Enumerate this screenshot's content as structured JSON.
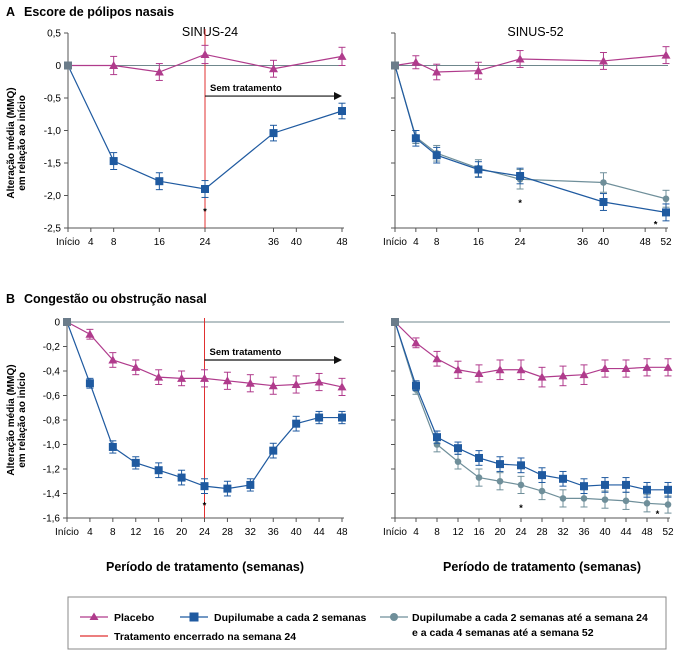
{
  "colors": {
    "placebo": "#b03b8c",
    "q2w": "#1f5aa0",
    "q2wq4w": "#6f8f9a",
    "stop": "#e03030",
    "axis": "#555555",
    "ref": "#3f5f66"
  },
  "figure": {
    "x_axis_title": "Período de tratamento (semanas)",
    "y_axis_title_line1": "Alteração média (MMQ)",
    "y_axis_title_line2": "em relação ao início",
    "annotation_no_treatment": "Sem tratamento",
    "significance_marker": "*"
  },
  "legend": {
    "placebo": "Placebo",
    "q2w": "Dupilumabe a cada 2 semanas",
    "q2wq4w_line1": "Dupilumabe a cada 2 semanas até a semana 24",
    "q2wq4w_line2": "e a cada 4 semanas até a semana 52",
    "stop": "Tratamento encerrado na semana 24"
  },
  "panels": {
    "A": {
      "letter": "A",
      "title": "Escore de pólipos nasais"
    },
    "B": {
      "letter": "B",
      "title": "Congestão ou obstrução nasal"
    }
  },
  "chart_data": [
    {
      "id": "A1",
      "type": "line",
      "panel": "A",
      "subtitle": "SINUS-24",
      "x": [
        0,
        8,
        16,
        24,
        36,
        48
      ],
      "xticks": [
        0,
        4,
        8,
        16,
        24,
        36,
        40,
        48
      ],
      "xtick_labels": [
        "Início",
        "4",
        "8",
        "16",
        "24",
        "36",
        "40",
        "48"
      ],
      "ylim": [
        -2.5,
        0.5
      ],
      "yticks": [
        0.5,
        0,
        -0.5,
        -1,
        -1.5,
        -2,
        -2.5
      ],
      "ytick_labels": [
        "0,5",
        "0",
        "-0,5",
        "-1,0",
        "-1,5",
        "-2,0",
        "-2,5"
      ],
      "series": [
        {
          "key": "placebo",
          "values": [
            0,
            0,
            -0.1,
            0.17,
            -0.05,
            0.14
          ],
          "err": [
            0,
            0.14,
            0.13,
            0.14,
            0.13,
            0.14
          ]
        },
        {
          "key": "q2w",
          "values": [
            0,
            -1.47,
            -1.78,
            -1.9,
            -1.04,
            -0.7
          ],
          "err": [
            0,
            0.13,
            0.13,
            0.13,
            0.12,
            0.12
          ]
        }
      ],
      "stop_week": 24,
      "stars": [
        {
          "x": 24,
          "y": -2.23
        }
      ],
      "arrow": {
        "x0": 24,
        "x1": 48,
        "y": -0.47
      }
    },
    {
      "id": "A2",
      "type": "line",
      "panel": "A",
      "subtitle": "SINUS-52",
      "x": [
        0,
        4,
        8,
        16,
        24,
        40,
        52
      ],
      "xticks": [
        0,
        4,
        8,
        16,
        24,
        36,
        40,
        48,
        52
      ],
      "xtick_labels": [
        "Início",
        "4",
        "8",
        "16",
        "24",
        "36",
        "40",
        "48",
        "52"
      ],
      "ylim": [
        -2.5,
        0.5
      ],
      "yticks": [
        0.5,
        0,
        -0.5,
        -1,
        -1.5,
        -2,
        -2.5
      ],
      "series": [
        {
          "key": "placebo",
          "values": [
            0,
            0.05,
            -0.1,
            -0.08,
            0.1,
            0.07,
            0.16
          ],
          "err": [
            0,
            0.1,
            0.12,
            0.13,
            0.13,
            0.13,
            0.13
          ]
        },
        {
          "key": "q2wq4w",
          "values": [
            0,
            -1.1,
            -1.35,
            -1.58,
            -1.75,
            -1.8,
            -2.05
          ],
          "err": [
            0,
            0.1,
            0.12,
            0.13,
            0.15,
            0.15,
            0.13
          ]
        },
        {
          "key": "q2w",
          "values": [
            0,
            -1.12,
            -1.38,
            -1.6,
            -1.7,
            -2.1,
            -2.26
          ],
          "err": [
            0,
            0.12,
            0.12,
            0.12,
            0.12,
            0.13,
            0.13
          ]
        }
      ],
      "stars": [
        {
          "x": 24,
          "y": -2.1
        },
        {
          "x": 50,
          "y": -2.43
        }
      ]
    },
    {
      "id": "B1",
      "type": "line",
      "panel": "B",
      "x": [
        0,
        4,
        8,
        12,
        16,
        20,
        24,
        28,
        32,
        36,
        40,
        44,
        48
      ],
      "xticks": [
        0,
        4,
        8,
        12,
        16,
        20,
        24,
        28,
        32,
        36,
        40,
        44,
        48
      ],
      "xtick_labels": [
        "Início",
        "4",
        "8",
        "12",
        "16",
        "20",
        "24",
        "28",
        "32",
        "36",
        "40",
        "44",
        "48"
      ],
      "ylim": [
        -1.6,
        0
      ],
      "yticks": [
        0,
        -0.2,
        -0.4,
        -0.6,
        -0.8,
        -1.0,
        -1.2,
        -1.4,
        -1.6
      ],
      "ytick_labels": [
        "0",
        "-0,2",
        "-0,4",
        "-0,6",
        "-0,8",
        "-1,0",
        "-1,2",
        "-1,4",
        "-1,6"
      ],
      "series": [
        {
          "key": "placebo",
          "values": [
            0,
            -0.1,
            -0.31,
            -0.37,
            -0.45,
            -0.46,
            -0.46,
            -0.48,
            -0.5,
            -0.52,
            -0.51,
            -0.49,
            -0.53
          ],
          "err": [
            0,
            0.04,
            0.06,
            0.06,
            0.06,
            0.06,
            0.07,
            0.07,
            0.07,
            0.07,
            0.07,
            0.07,
            0.07
          ]
        },
        {
          "key": "q2w",
          "values": [
            0,
            -0.5,
            -1.02,
            -1.15,
            -1.21,
            -1.27,
            -1.34,
            -1.36,
            -1.33,
            -1.05,
            -0.83,
            -0.78,
            -0.78
          ],
          "err": [
            0,
            0.04,
            0.05,
            0.05,
            0.06,
            0.06,
            0.06,
            0.06,
            0.05,
            0.06,
            0.06,
            0.05,
            0.05
          ]
        }
      ],
      "stop_week": 24,
      "stars": [
        {
          "x": 24,
          "y": -1.49
        }
      ],
      "arrow": {
        "x0": 24,
        "x1": 48,
        "y": -0.31
      }
    },
    {
      "id": "B2",
      "type": "line",
      "panel": "B",
      "x": [
        0,
        4,
        8,
        12,
        16,
        20,
        24,
        28,
        32,
        36,
        40,
        44,
        48,
        52
      ],
      "xticks": [
        0,
        4,
        8,
        12,
        16,
        20,
        24,
        28,
        32,
        36,
        40,
        44,
        48,
        52
      ],
      "xtick_labels": [
        "Início",
        "4",
        "8",
        "12",
        "16",
        "20",
        "24",
        "28",
        "32",
        "36",
        "40",
        "44",
        "48",
        "52"
      ],
      "ylim": [
        -1.6,
        0
      ],
      "yticks": [
        0,
        -0.2,
        -0.4,
        -0.6,
        -0.8,
        -1.0,
        -1.2,
        -1.4,
        -1.6
      ],
      "series": [
        {
          "key": "placebo",
          "values": [
            0,
            -0.17,
            -0.3,
            -0.39,
            -0.42,
            -0.39,
            -0.39,
            -0.45,
            -0.44,
            -0.43,
            -0.38,
            -0.38,
            -0.37,
            -0.37
          ],
          "err": [
            0,
            0.04,
            0.06,
            0.07,
            0.07,
            0.08,
            0.08,
            0.08,
            0.08,
            0.08,
            0.07,
            0.07,
            0.07,
            0.07
          ]
        },
        {
          "key": "q2wq4w",
          "values": [
            0,
            -0.55,
            -1.0,
            -1.14,
            -1.27,
            -1.3,
            -1.33,
            -1.38,
            -1.44,
            -1.44,
            -1.45,
            -1.46,
            -1.48,
            -1.49
          ],
          "err": [
            0,
            0.04,
            0.06,
            0.06,
            0.07,
            0.07,
            0.07,
            0.07,
            0.07,
            0.07,
            0.07,
            0.07,
            0.07,
            0.07
          ]
        },
        {
          "key": "q2w",
          "values": [
            0,
            -0.52,
            -0.94,
            -1.03,
            -1.11,
            -1.16,
            -1.17,
            -1.25,
            -1.28,
            -1.34,
            -1.33,
            -1.33,
            -1.37,
            -1.37
          ],
          "err": [
            0,
            0.04,
            0.05,
            0.05,
            0.06,
            0.06,
            0.06,
            0.06,
            0.06,
            0.06,
            0.06,
            0.06,
            0.06,
            0.06
          ]
        }
      ],
      "stars": [
        {
          "x": 24,
          "y": -1.51
        },
        {
          "x": 50,
          "y": -1.56
        }
      ]
    }
  ]
}
